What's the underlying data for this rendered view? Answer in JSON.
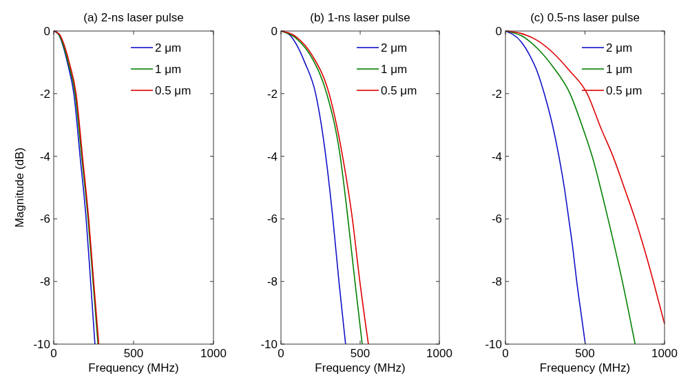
{
  "chart_data": [
    {
      "type": "line",
      "title": "(a) 2-ns laser pulse",
      "xlabel": "Frequency (MHz)",
      "ylabel": "Magnitude (dB)",
      "xlim": [
        0,
        1000
      ],
      "ylim": [
        -10,
        0
      ],
      "xticks": [
        0,
        500,
        1000
      ],
      "yticks": [
        0,
        -2,
        -4,
        -6,
        -8,
        -10
      ],
      "legend": "top right",
      "series": [
        {
          "name": "2 μm",
          "color": "#1010c8",
          "x": [
            0,
            30,
            60,
            90,
            126,
            165,
            203,
            231,
            258
          ],
          "values": [
            0,
            -0.1,
            -0.5,
            -1.1,
            -2,
            -4,
            -6,
            -8,
            -10
          ]
        },
        {
          "name": "1 μm",
          "color": "#008000",
          "x": [
            0,
            30,
            60,
            90,
            134,
            175,
            215,
            246,
            277
          ],
          "values": [
            0,
            -0.1,
            -0.45,
            -1.0,
            -2,
            -4,
            -6,
            -8,
            -10
          ]
        },
        {
          "name": "0.5 μm",
          "color": "#dd0000",
          "x": [
            0,
            35,
            66,
            97,
            140,
            180,
            219,
            250,
            282
          ],
          "values": [
            0,
            -0.1,
            -0.45,
            -1.0,
            -2,
            -4,
            -6,
            -8,
            -10
          ]
        }
      ]
    },
    {
      "type": "line",
      "title": "(b) 1-ns laser pulse",
      "xlabel": "Frequency (MHz)",
      "xlim": [
        0,
        1000
      ],
      "ylim": [
        -10,
        0
      ],
      "xticks": [
        0,
        500,
        1000
      ],
      "yticks": [
        0,
        -2,
        -4,
        -6,
        -8,
        -10
      ],
      "legend": "top right",
      "series": [
        {
          "name": "2 μm",
          "color": "#1010c8",
          "x": [
            0,
            50,
            100,
            150,
            219,
            255,
            283,
            328,
            366,
            408
          ],
          "values": [
            0,
            -0.1,
            -0.45,
            -1.0,
            -2,
            -3,
            -4,
            -6,
            -8,
            -10
          ]
        },
        {
          "name": "1 μm",
          "color": "#008000",
          "x": [
            0,
            100,
            200,
            289,
            374,
            423,
            467,
            513
          ],
          "values": [
            0,
            -0.25,
            -0.9,
            -2,
            -4,
            -6,
            -8,
            -10
          ]
        },
        {
          "name": "0.5 μm",
          "color": "#dd0000",
          "x": [
            0,
            100,
            200,
            304,
            389,
            451,
            498,
            552
          ],
          "values": [
            0,
            -0.2,
            -0.8,
            -2,
            -4,
            -6,
            -8,
            -10
          ]
        }
      ]
    },
    {
      "type": "line",
      "title": "(c) 0.5-ns laser pulse",
      "xlabel": "Frequency (MHz)",
      "xlim": [
        0,
        1000
      ],
      "ylim": [
        -10,
        0
      ],
      "xticks": [
        0,
        500,
        1000
      ],
      "yticks": [
        0,
        -2,
        -4,
        -6,
        -8,
        -10
      ],
      "legend": "top right",
      "series": [
        {
          "name": "2 μm",
          "color": "#1010c8",
          "x": [
            0,
            100,
            150,
            200,
            244,
            300,
            336,
            370,
            398,
            425,
            448,
            475,
            502
          ],
          "values": [
            0,
            -0.35,
            -0.75,
            -1.3,
            -2,
            -3.1,
            -4,
            -5,
            -6,
            -7,
            -8,
            -9,
            -10
          ]
        },
        {
          "name": "1 μm",
          "color": "#008000",
          "x": [
            0,
            100,
            200,
            300,
            406,
            480,
            545,
            645,
            735,
            815
          ],
          "values": [
            0,
            -0.15,
            -0.55,
            -1.15,
            -2,
            -3,
            -4,
            -6,
            -8,
            -10
          ]
        },
        {
          "name": "0.5 μm",
          "color": "#dd0000",
          "x": [
            0,
            100,
            200,
            300,
            400,
            514,
            600,
            676,
            750,
            815,
            875,
            930,
            1000
          ],
          "values": [
            0,
            -0.08,
            -0.3,
            -0.7,
            -1.25,
            -2,
            -3.1,
            -4,
            -5.05,
            -6,
            -7,
            -8,
            -9.35
          ]
        }
      ]
    }
  ]
}
